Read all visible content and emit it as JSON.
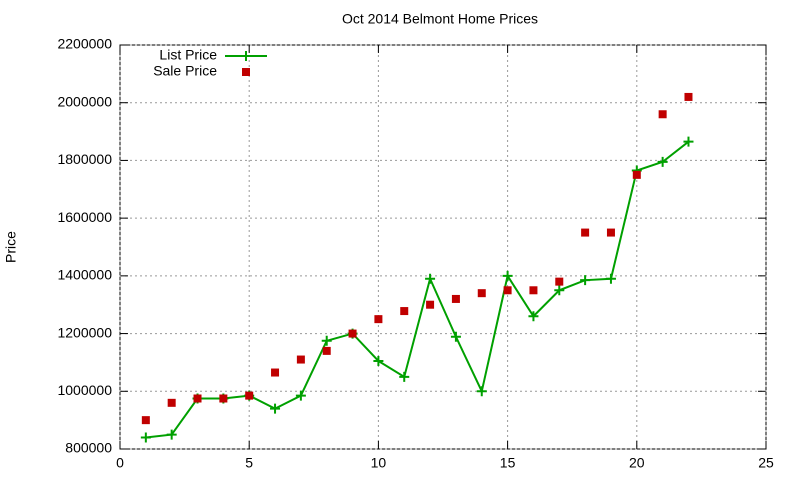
{
  "chart_data": {
    "type": "line",
    "title": "Oct 2014 Belmont Home Prices",
    "y_label": "Price",
    "x": [
      1,
      2,
      3,
      4,
      5,
      6,
      7,
      8,
      9,
      10,
      11,
      12,
      13,
      14,
      15,
      16,
      17,
      18,
      19,
      20,
      21,
      22
    ],
    "series": [
      {
        "name": "List Price",
        "color": "#00a000",
        "style": "lines+markers",
        "values": [
          840000,
          850000,
          975000,
          975000,
          985000,
          940000,
          985000,
          1175000,
          1200000,
          1105000,
          1050000,
          1390000,
          1189000,
          1000000,
          1400000,
          1260000,
          1350000,
          1385000,
          1390000,
          1765000,
          1795000,
          1865000
        ]
      },
      {
        "name": "Sale Price",
        "color": "#c00000",
        "style": "markers",
        "values": [
          900000,
          960000,
          975000,
          975000,
          985000,
          1065000,
          1110000,
          1140000,
          1200000,
          1250000,
          1278000,
          1300000,
          1320000,
          1340000,
          1350000,
          1350000,
          1380000,
          1550000,
          1550000,
          1750000,
          1960000,
          2020000
        ]
      }
    ],
    "xlim": [
      0,
      25
    ],
    "xticks": [
      0,
      5,
      10,
      15,
      20,
      25
    ],
    "ylim": [
      800000,
      2200000
    ],
    "yticks": [
      800000,
      1000000,
      1200000,
      1400000,
      1600000,
      1800000,
      2000000,
      2200000
    ],
    "grid": true,
    "legend": "top-left"
  }
}
